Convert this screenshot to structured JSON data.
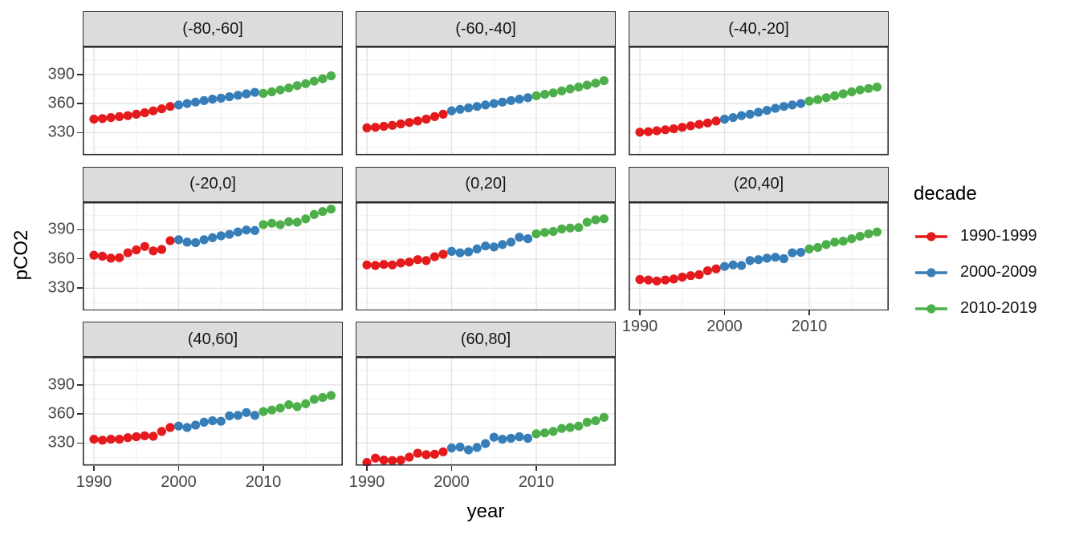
{
  "chart_data": {
    "type": "scatter",
    "title": "",
    "xlabel": "year",
    "ylabel": "pCO2",
    "legend_title": "decade",
    "legend_position": "right",
    "grid": true,
    "x_range": [
      1988.67,
      2019.38
    ],
    "y_range": [
      306.8,
      418.7
    ],
    "x_ticks": [
      1990,
      2000,
      2010
    ],
    "y_ticks": [
      330,
      360,
      390
    ],
    "x_minor_ticks": [
      1995,
      2005,
      2015
    ],
    "y_minor_ticks": [
      315,
      345,
      375,
      405
    ],
    "decades": [
      {
        "name": "1990-1999",
        "color": "#E41A1C",
        "start_year": 1990
      },
      {
        "name": "2000-2009",
        "color": "#377EB8",
        "start_year": 2000
      },
      {
        "name": "2010-2019",
        "color": "#4DAF4A",
        "start_year": 2010
      }
    ],
    "facets": [
      {
        "label": "(-80,-60]",
        "series": [
          [
            344,
            344.5,
            345.5,
            346.5,
            347.5,
            349,
            350.5,
            352.5,
            354.5,
            357
          ],
          [
            358.5,
            360,
            361.5,
            363,
            364.5,
            365.5,
            367,
            368.5,
            370,
            371.5
          ],
          [
            370.5,
            372,
            374,
            376,
            378.5,
            380.5,
            383,
            385.5,
            388.5
          ]
        ]
      },
      {
        "label": "(-60,-40]",
        "series": [
          [
            335,
            335.5,
            336.5,
            337.5,
            339,
            340.5,
            342,
            344,
            346.5,
            349
          ],
          [
            352.5,
            354,
            355.5,
            357,
            358.5,
            360,
            361.5,
            363,
            364.5,
            366
          ],
          [
            368,
            369.5,
            371,
            373,
            375,
            377,
            379,
            381,
            383.5
          ]
        ]
      },
      {
        "label": "(-40,-20]",
        "series": [
          [
            330.5,
            331,
            332,
            333,
            334,
            335.5,
            337,
            338.5,
            340,
            342
          ],
          [
            344,
            345.5,
            347.5,
            349,
            351,
            353,
            355,
            357,
            358.5,
            360
          ],
          [
            362.5,
            364,
            366,
            368,
            370,
            372,
            374,
            375.5,
            377
          ]
        ]
      },
      {
        "label": "(-20,0]",
        "series": [
          [
            364,
            363,
            361,
            361.5,
            366.5,
            369.5,
            373,
            368.5,
            370,
            379
          ],
          [
            380,
            377.5,
            377,
            380,
            382,
            384,
            385.5,
            388,
            390,
            389.5
          ],
          [
            395.5,
            397,
            395.5,
            398.5,
            398,
            401.5,
            406,
            409,
            411.5
          ]
        ]
      },
      {
        "label": "(0,20]",
        "series": [
          [
            354,
            353.5,
            354.5,
            354,
            356,
            357,
            359.5,
            358.5,
            362.5,
            365
          ],
          [
            368,
            366.5,
            367.5,
            370.5,
            373.5,
            372.5,
            375,
            377.5,
            382.5,
            381
          ],
          [
            386,
            387.5,
            388.5,
            391,
            392,
            392.5,
            398,
            400.5,
            401.5
          ]
        ]
      },
      {
        "label": "(20,40]",
        "series": [
          [
            339,
            338.5,
            337.5,
            338.5,
            339.5,
            341.5,
            343,
            344,
            348,
            350
          ],
          [
            352.5,
            354,
            353.5,
            358.5,
            359.5,
            361,
            362,
            360.5,
            366.5,
            367
          ],
          [
            370.5,
            372,
            375,
            377.5,
            378.5,
            381,
            383.5,
            386,
            388
          ]
        ]
      },
      {
        "label": "(40,60]",
        "series": [
          [
            334,
            333,
            334,
            334,
            335.5,
            336.5,
            337.5,
            337,
            342,
            346
          ],
          [
            347.5,
            346,
            348.5,
            351.5,
            353,
            352.5,
            358,
            358.5,
            361.5,
            358.5
          ],
          [
            362.5,
            364,
            366,
            369.5,
            367.5,
            370.5,
            375,
            377,
            379
          ]
        ]
      },
      {
        "label": "(60,80]",
        "series": [
          [
            310,
            314.5,
            312.5,
            312,
            312.5,
            315.5,
            319.5,
            318,
            318.5,
            321
          ],
          [
            325,
            326,
            323,
            325.5,
            329.5,
            336,
            334,
            335,
            336.5,
            335
          ],
          [
            339.5,
            340.5,
            342,
            345,
            346,
            347.5,
            351.5,
            353,
            356.5
          ]
        ]
      }
    ]
  }
}
